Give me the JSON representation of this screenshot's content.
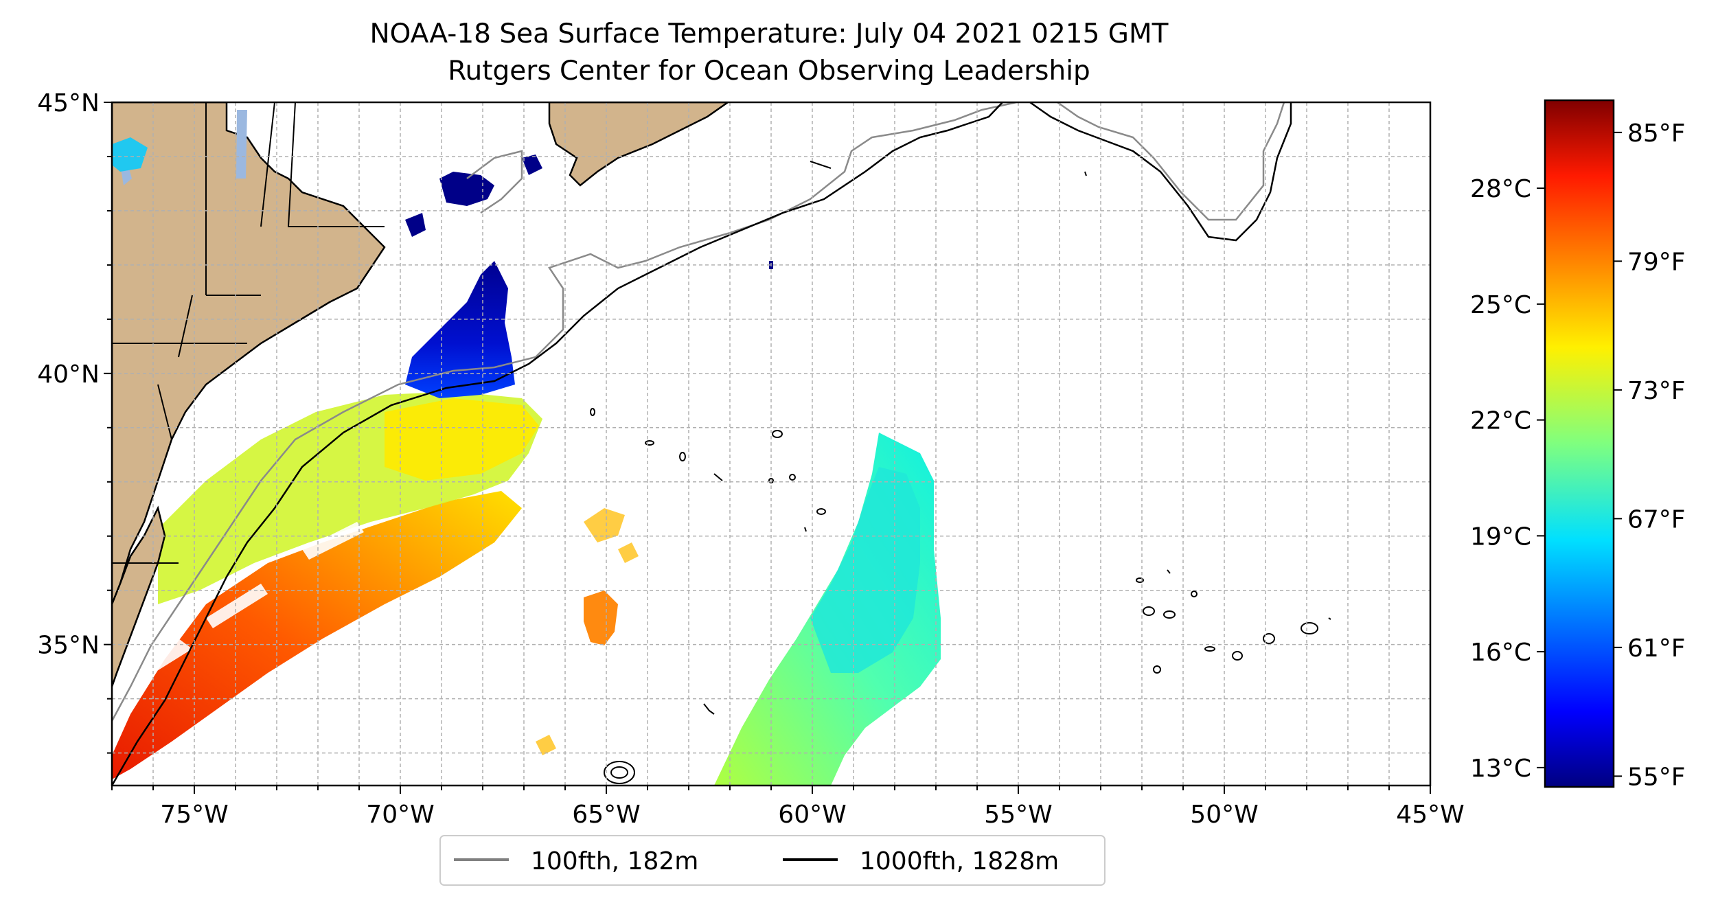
{
  "title": {
    "line1": "NOAA-18 Sea Surface Temperature: July 04 2021 0215 GMT",
    "line2": "Rutgers Center for Ocean Observing Leadership"
  },
  "map": {
    "extent": {
      "lon_min": -77,
      "lon_max": -45,
      "lat_min": 32.4,
      "lat_max": 45
    },
    "lon_ticks": [
      {
        "value": -75,
        "label": "75°W"
      },
      {
        "value": -70,
        "label": "70°W"
      },
      {
        "value": -65,
        "label": "65°W"
      },
      {
        "value": -60,
        "label": "60°W"
      },
      {
        "value": -55,
        "label": "55°W"
      },
      {
        "value": -50,
        "label": "50°W"
      },
      {
        "value": -45,
        "label": "45°W"
      }
    ],
    "lat_ticks": [
      {
        "value": 45,
        "label": "45°N"
      },
      {
        "value": 40,
        "label": "40°N"
      },
      {
        "value": 35,
        "label": "35°N"
      }
    ],
    "grid": true,
    "land_color": "#D2B48C",
    "lake_color": "#9BB8E0"
  },
  "colorbar": {
    "colormap": "jet",
    "fahrenheit_range": [
      54.5,
      86.5
    ],
    "fahrenheit_ticks": [
      {
        "value": 55,
        "label": "55°F"
      },
      {
        "value": 61,
        "label": "61°F"
      },
      {
        "value": 67,
        "label": "67°F"
      },
      {
        "value": 73,
        "label": "73°F"
      },
      {
        "value": 79,
        "label": "79°F"
      },
      {
        "value": 85,
        "label": "85°F"
      }
    ],
    "celsius_ticks": [
      {
        "value": 13,
        "label": "13°C"
      },
      {
        "value": 16,
        "label": "16°C"
      },
      {
        "value": 19,
        "label": "19°C"
      },
      {
        "value": 22,
        "label": "22°C"
      },
      {
        "value": 25,
        "label": "25°C"
      },
      {
        "value": 28,
        "label": "28°C"
      }
    ]
  },
  "legend": {
    "placement": "lower-center",
    "items": [
      {
        "label": "100fth, 182m",
        "color": "#808080"
      },
      {
        "label": "1000fth, 1828m",
        "color": "#000000"
      }
    ]
  }
}
